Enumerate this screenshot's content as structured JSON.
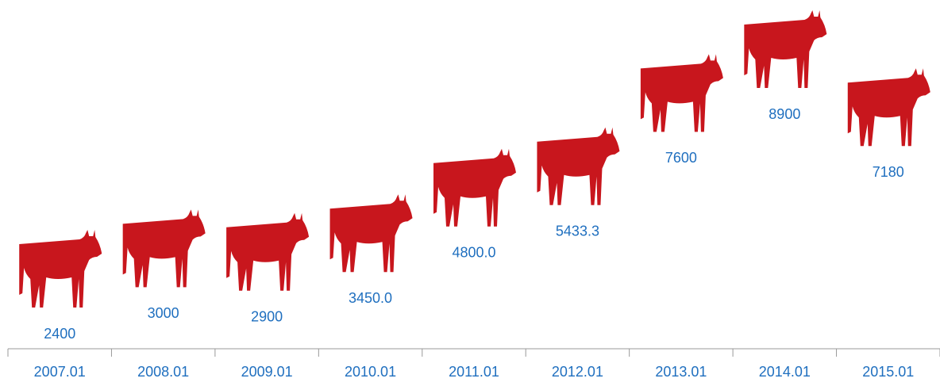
{
  "chart_data": {
    "type": "pictorial",
    "categories": [
      "2007.01",
      "2008.01",
      "2009.01",
      "2010.01",
      "2011.01",
      "2012.01",
      "2013.01",
      "2014.01",
      "2015.01"
    ],
    "values": [
      2400,
      3000,
      2900,
      3450,
      4800,
      5433.3,
      7600,
      8900,
      7180
    ],
    "value_labels": [
      "2400",
      "3000",
      "2900",
      "3450.0",
      "4800.0",
      "5433.3",
      "7600",
      "8900",
      "7180"
    ],
    "color": "#c8161d"
  }
}
